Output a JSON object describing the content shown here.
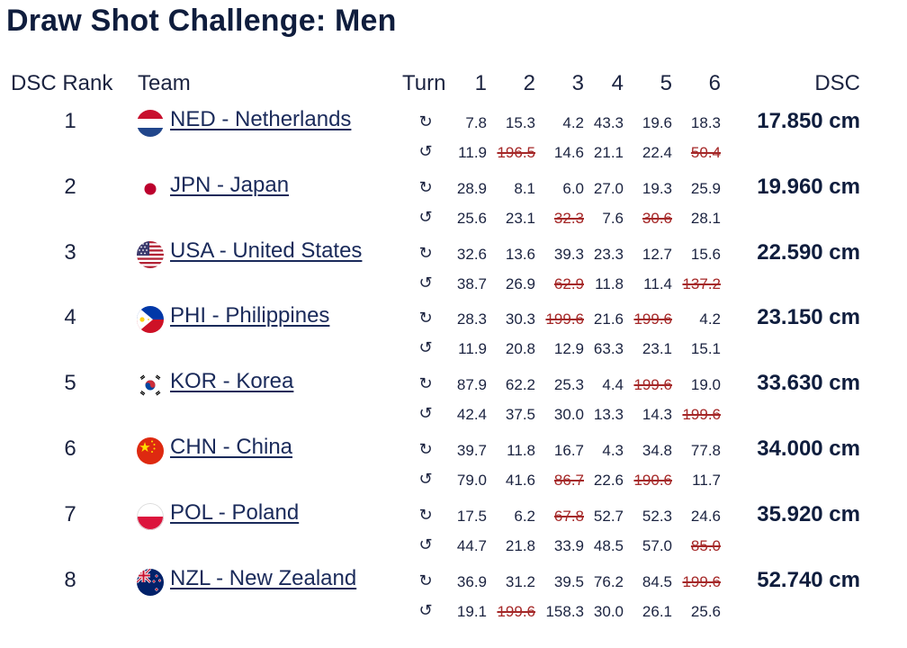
{
  "title": "Draw Shot Challenge: Men",
  "headers": {
    "rank": "DSC Rank",
    "team": "Team",
    "turn": "Turn",
    "ends": [
      "1",
      "2",
      "3",
      "4",
      "5",
      "6"
    ],
    "dsc": "DSC"
  },
  "turn_icons": {
    "clockwise": "↻",
    "counter": "↺"
  },
  "rows": [
    {
      "rank": "1",
      "team": "NED - Netherlands",
      "flag": "flag-netherlands",
      "cw": [
        {
          "v": "7.8"
        },
        {
          "v": "15.3"
        },
        {
          "v": "4.2"
        },
        {
          "v": "43.3"
        },
        {
          "v": "19.6"
        },
        {
          "v": "18.3"
        }
      ],
      "ccw": [
        {
          "v": "11.9"
        },
        {
          "v": "196.5",
          "x": true
        },
        {
          "v": "14.6"
        },
        {
          "v": "21.1"
        },
        {
          "v": "22.4"
        },
        {
          "v": "50.4",
          "x": true
        }
      ],
      "dsc": "17.850 cm"
    },
    {
      "rank": "2",
      "team": "JPN - Japan",
      "flag": "flag-japan",
      "cw": [
        {
          "v": "28.9"
        },
        {
          "v": "8.1"
        },
        {
          "v": "6.0"
        },
        {
          "v": "27.0"
        },
        {
          "v": "19.3"
        },
        {
          "v": "25.9"
        }
      ],
      "ccw": [
        {
          "v": "25.6"
        },
        {
          "v": "23.1"
        },
        {
          "v": "32.3",
          "x": true
        },
        {
          "v": "7.6"
        },
        {
          "v": "30.6",
          "x": true
        },
        {
          "v": "28.1"
        }
      ],
      "dsc": "19.960 cm"
    },
    {
      "rank": "3",
      "team": "USA - United States",
      "flag": "flag-usa",
      "cw": [
        {
          "v": "32.6"
        },
        {
          "v": "13.6"
        },
        {
          "v": "39.3"
        },
        {
          "v": "23.3"
        },
        {
          "v": "12.7"
        },
        {
          "v": "15.6"
        }
      ],
      "ccw": [
        {
          "v": "38.7"
        },
        {
          "v": "26.9"
        },
        {
          "v": "62.9",
          "x": true
        },
        {
          "v": "11.8"
        },
        {
          "v": "11.4"
        },
        {
          "v": "137.2",
          "x": true
        }
      ],
      "dsc": "22.590 cm"
    },
    {
      "rank": "4",
      "team": "PHI - Philippines",
      "flag": "flag-philippines",
      "cw": [
        {
          "v": "28.3"
        },
        {
          "v": "30.3"
        },
        {
          "v": "199.6",
          "x": true
        },
        {
          "v": "21.6"
        },
        {
          "v": "199.6",
          "x": true
        },
        {
          "v": "4.2"
        }
      ],
      "ccw": [
        {
          "v": "11.9"
        },
        {
          "v": "20.8"
        },
        {
          "v": "12.9"
        },
        {
          "v": "63.3"
        },
        {
          "v": "23.1"
        },
        {
          "v": "15.1"
        }
      ],
      "dsc": "23.150 cm"
    },
    {
      "rank": "5",
      "team": "KOR - Korea",
      "flag": "flag-korea",
      "cw": [
        {
          "v": "87.9"
        },
        {
          "v": "62.2"
        },
        {
          "v": "25.3"
        },
        {
          "v": "4.4"
        },
        {
          "v": "199.6",
          "x": true
        },
        {
          "v": "19.0"
        }
      ],
      "ccw": [
        {
          "v": "42.4"
        },
        {
          "v": "37.5"
        },
        {
          "v": "30.0"
        },
        {
          "v": "13.3"
        },
        {
          "v": "14.3"
        },
        {
          "v": "199.6",
          "x": true
        }
      ],
      "dsc": "33.630 cm"
    },
    {
      "rank": "6",
      "team": "CHN - China",
      "flag": "flag-china",
      "cw": [
        {
          "v": "39.7"
        },
        {
          "v": "11.8"
        },
        {
          "v": "16.7"
        },
        {
          "v": "4.3"
        },
        {
          "v": "34.8"
        },
        {
          "v": "77.8"
        }
      ],
      "ccw": [
        {
          "v": "79.0"
        },
        {
          "v": "41.6"
        },
        {
          "v": "86.7",
          "x": true
        },
        {
          "v": "22.6"
        },
        {
          "v": "190.6",
          "x": true
        },
        {
          "v": "11.7"
        }
      ],
      "dsc": "34.000 cm"
    },
    {
      "rank": "7",
      "team": "POL - Poland",
      "flag": "flag-poland",
      "cw": [
        {
          "v": "17.5"
        },
        {
          "v": "6.2"
        },
        {
          "v": "67.8",
          "x": true
        },
        {
          "v": "52.7"
        },
        {
          "v": "52.3"
        },
        {
          "v": "24.6"
        }
      ],
      "ccw": [
        {
          "v": "44.7"
        },
        {
          "v": "21.8"
        },
        {
          "v": "33.9"
        },
        {
          "v": "48.5"
        },
        {
          "v": "57.0"
        },
        {
          "v": "85.0",
          "x": true
        }
      ],
      "dsc": "35.920 cm"
    },
    {
      "rank": "8",
      "team": "NZL - New Zealand",
      "flag": "flag-new-zealand",
      "cw": [
        {
          "v": "36.9"
        },
        {
          "v": "31.2"
        },
        {
          "v": "39.5"
        },
        {
          "v": "76.2"
        },
        {
          "v": "84.5"
        },
        {
          "v": "199.6",
          "x": true
        }
      ],
      "ccw": [
        {
          "v": "19.1"
        },
        {
          "v": "199.6",
          "x": true
        },
        {
          "v": "158.3"
        },
        {
          "v": "30.0"
        },
        {
          "v": "26.1"
        },
        {
          "v": "25.6"
        }
      ],
      "dsc": "52.740 cm"
    }
  ]
}
